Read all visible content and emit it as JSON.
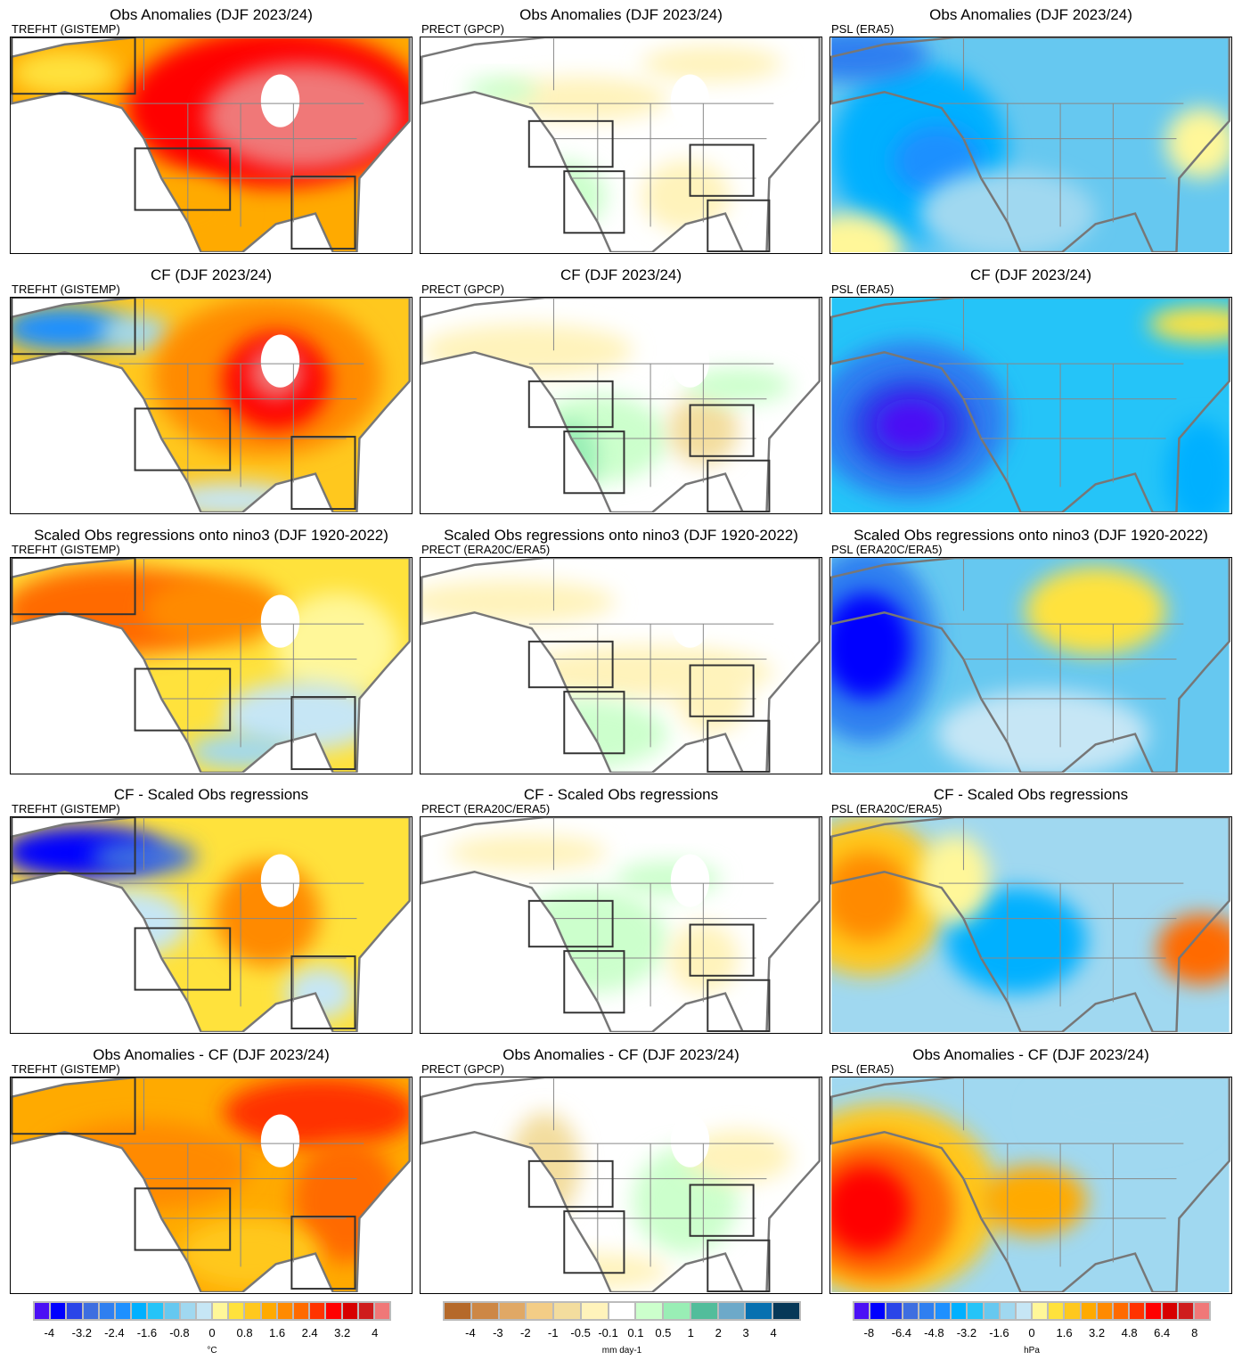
{
  "columns": [
    {
      "var": "TREFHT",
      "scale": "temp"
    },
    {
      "var": "PRECT",
      "scale": "precip"
    },
    {
      "var": "PSL",
      "scale": "psl"
    }
  ],
  "rows": [
    {
      "titles": [
        "Obs Anomalies (DJF 2023/24)",
        "Obs Anomalies (DJF 2023/24)",
        "Obs Anomalies (DJF 2023/24)"
      ],
      "subs": [
        "TREFHT (GISTEMP)",
        "PRECT (GPCP)",
        "PSL (ERA5)"
      ]
    },
    {
      "titles": [
        "CF (DJF 2023/24)",
        "CF (DJF 2023/24)",
        "CF (DJF 2023/24)"
      ],
      "subs": [
        "TREFHT (GISTEMP)",
        "PRECT (GPCP)",
        "PSL (ERA5)"
      ]
    },
    {
      "titles": [
        "Scaled Obs regressions onto nino3 (DJF 1920-2022)",
        "Scaled Obs regressions onto nino3 (DJF 1920-2022)",
        "Scaled Obs regressions onto nino3 (DJF 1920-2022)"
      ],
      "subs": [
        "TREFHT (GISTEMP)",
        "PRECT (ERA20C/ERA5)",
        "PSL (ERA20C/ERA5)"
      ]
    },
    {
      "titles": [
        "CF - Scaled Obs regressions",
        "CF - Scaled Obs regressions",
        "CF - Scaled Obs regressions"
      ],
      "subs": [
        "TREFHT (GISTEMP)",
        "PRECT (ERA20C/ERA5)",
        "PSL (ERA20C/ERA5)"
      ]
    },
    {
      "titles": [
        "Obs Anomalies - CF (DJF 2023/24)",
        "Obs Anomalies - CF (DJF 2023/24)",
        "Obs Anomalies - CF (DJF 2023/24)"
      ],
      "subs": [
        "TREFHT (GISTEMP)",
        "PRECT (GPCP)",
        "PSL (ERA5)"
      ]
    }
  ],
  "colorbars": {
    "temp": {
      "unit": "°C",
      "levels": [
        -4,
        -3.6,
        -3.2,
        -2.8,
        -2.4,
        -2,
        -1.6,
        -1.2,
        -0.8,
        -0.4,
        0,
        0.4,
        0.8,
        1.2,
        1.6,
        2,
        2.4,
        2.8,
        3.2,
        3.6,
        4
      ],
      "labels": [
        "-4",
        "-3.2",
        "-2.4",
        "-1.6",
        "-0.8",
        "0",
        "0.8",
        "1.6",
        "2.4",
        "3.2",
        "4"
      ],
      "colors": [
        "#4b10f5",
        "#0000ff",
        "#2a45e8",
        "#3e6ee0",
        "#2f7ff0",
        "#1e90ff",
        "#00b0ff",
        "#25c4f8",
        "#66c8f0",
        "#a0d8f0",
        "#c6e6f5",
        "#fff799",
        "#ffe23c",
        "#ffc81e",
        "#ffaa00",
        "#ff8a00",
        "#ff6a00",
        "#ff3300",
        "#ff0000",
        "#d70000",
        "#cf1c1c",
        "#f07878"
      ]
    },
    "precip": {
      "unit": "mm day-1",
      "levels": [
        -4,
        -3,
        -2,
        -1,
        -0.5,
        -0.1,
        0.1,
        0.5,
        1,
        2,
        3,
        4
      ],
      "labels": [
        "-4",
        "-3",
        "-2",
        "-1",
        "-0.5",
        "-0.1",
        "0.1",
        "0.5",
        "1",
        "2",
        "3",
        "4"
      ],
      "colors": [
        "#b5692a",
        "#cd8745",
        "#e0a865",
        "#f3cd86",
        "#f3dd9e",
        "#fff3bb",
        "#ffffff",
        "#ccffcc",
        "#99eeb5",
        "#52bd9b",
        "#6da9c9",
        "#0870b0",
        "#063858"
      ]
    },
    "psl": {
      "unit": "hPa",
      "levels": [
        -8,
        -7.2,
        -6.4,
        -5.6,
        -4.8,
        -4,
        -3.2,
        -2.4,
        -1.6,
        -0.8,
        0,
        0.8,
        1.6,
        2.4,
        3.2,
        4,
        4.8,
        5.6,
        6.4,
        7.2,
        8
      ],
      "labels": [
        "-8",
        "-6.4",
        "-4.8",
        "-3.2",
        "-1.6",
        "0",
        "1.6",
        "3.2",
        "4.8",
        "6.4",
        "8"
      ],
      "colors": [
        "#4b10f5",
        "#0000ff",
        "#2a45e8",
        "#3e6ee0",
        "#2f7ff0",
        "#1e90ff",
        "#00b0ff",
        "#25c4f8",
        "#66c8f0",
        "#a0d8f0",
        "#c6e6f5",
        "#fff799",
        "#ffe23c",
        "#ffc81e",
        "#ffaa00",
        "#ff8a00",
        "#ff6a00",
        "#ff3300",
        "#ff0000",
        "#d70000",
        "#cf1c1c",
        "#f07878"
      ]
    }
  }
}
